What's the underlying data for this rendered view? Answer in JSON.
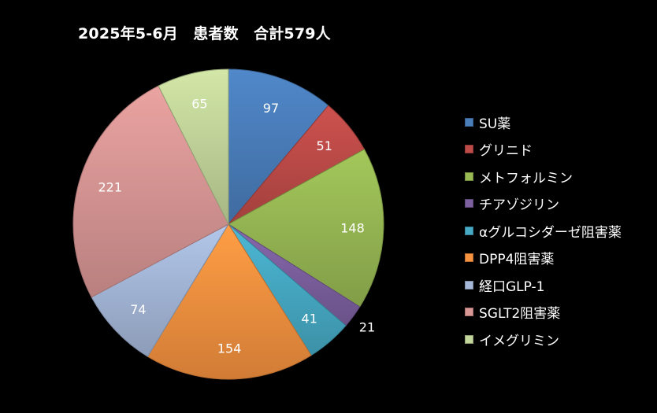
{
  "title": "2025年5-6月　患者数　合計579人",
  "legend": [
    {
      "label": "SU薬",
      "color": "#4a7ebb"
    },
    {
      "label": "グリニド",
      "color": "#be4b48"
    },
    {
      "label": "メトフォルミン",
      "color": "#98b954"
    },
    {
      "label": "チアゾジリン",
      "color": "#7d60a0"
    },
    {
      "label": "αグルコシダーゼ阻害薬",
      "color": "#46aac5"
    },
    {
      "label": "DPP4阻害薬",
      "color": "#f69240"
    },
    {
      "label": "経口GLP-1",
      "color": "#a5b8d9"
    },
    {
      "label": "SGLT2阻害薬",
      "color": "#d99795"
    },
    {
      "label": "イメグリミン",
      "color": "#c3d69b"
    }
  ],
  "chart_data": {
    "type": "pie",
    "title": "2025年5-6月　患者数　合計579人",
    "categories": [
      "SU薬",
      "グリニド",
      "メトフォルミン",
      "チアゾジリン",
      "αグルコシダーゼ阻害薬",
      "DPP4阻害薬",
      "経口GLP-1",
      "SGLT2阻害薬",
      "イメグリミン"
    ],
    "values": [
      97,
      51,
      148,
      21,
      41,
      154,
      74,
      221,
      65
    ],
    "colors": [
      "#4a7ebb",
      "#be4b48",
      "#98b954",
      "#7d60a0",
      "#46aac5",
      "#f69240",
      "#a5b8d9",
      "#d99795",
      "#c3d69b"
    ],
    "data_labels": true,
    "legend_position": "right",
    "start_angle": "12 o'clock, clockwise"
  }
}
